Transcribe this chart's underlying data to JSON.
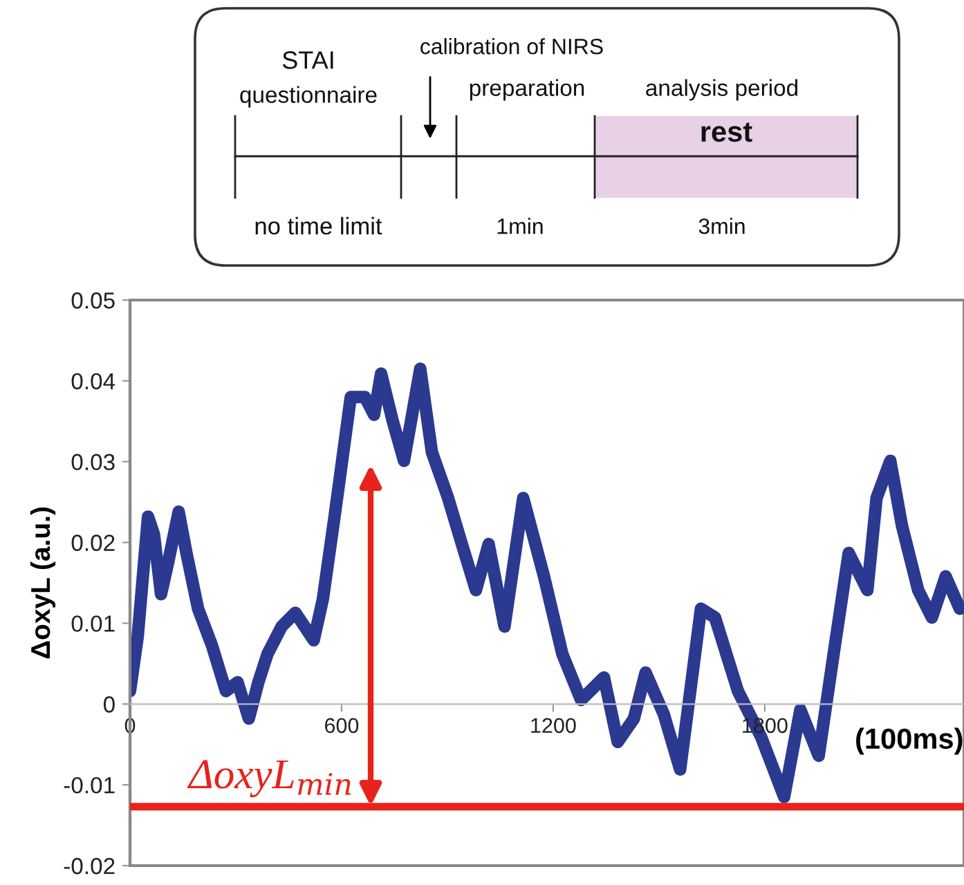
{
  "chart_data": {
    "type": "line",
    "ylabel": "ΔoxyL (a.u.)",
    "xlabel": "(100ms)",
    "x": [
      0,
      22,
      51,
      68,
      88,
      108,
      138,
      160,
      193,
      232,
      272,
      305,
      337,
      364,
      390,
      430,
      469,
      521,
      547,
      580,
      626,
      666,
      692,
      712,
      744,
      777,
      823,
      856,
      902,
      941,
      981,
      1017,
      1062,
      1115,
      1174,
      1226,
      1279,
      1344,
      1383,
      1429,
      1462,
      1514,
      1560,
      1619,
      1659,
      1724,
      1790,
      1855,
      1901,
      1953,
      1999,
      2038,
      2091,
      2117,
      2156,
      2189,
      2235,
      2274,
      2313,
      2353
    ],
    "series": [
      {
        "color": "#2b3990",
        "values": [
          0.0016,
          0.0084,
          0.0232,
          0.021,
          0.0136,
          0.0175,
          0.0238,
          0.0187,
          0.0118,
          0.0073,
          0.0016,
          0.0027,
          -0.0018,
          0.0027,
          0.0062,
          0.0096,
          0.0113,
          0.0079,
          0.013,
          0.0232,
          0.038,
          0.038,
          0.0358,
          0.0409,
          0.0352,
          0.0301,
          0.0415,
          0.0312,
          0.0255,
          0.0198,
          0.0141,
          0.0198,
          0.0096,
          0.0255,
          0.0158,
          0.0062,
          0.0005,
          0.0033,
          -0.0047,
          -0.0018,
          0.0039,
          -0.0013,
          -0.0081,
          0.0118,
          0.0107,
          0.0016,
          -0.0041,
          -0.0115,
          -0.0007,
          -0.0064,
          0.0073,
          0.0187,
          0.0141,
          0.0255,
          0.0301,
          0.0221,
          0.0141,
          0.0107,
          0.0158,
          0.0118
        ]
      }
    ],
    "xlim": [
      0,
      2365
    ],
    "ylim": [
      -0.02,
      0.05
    ],
    "xticks": [
      0,
      600,
      1200,
      1800
    ],
    "yticks": [
      -0.02,
      -0.01,
      0,
      0.01,
      0.02,
      0.03,
      0.04,
      0.05
    ],
    "ref_lines": [
      {
        "axis": "y",
        "value": -0.0127,
        "color": "#e8231b"
      }
    ],
    "annotations": [
      "ΔoxyL$_{min}$",
      "STAI",
      "questionnaire",
      "calibration of NIRS",
      "preparation",
      "analysis period",
      "rest",
      "no time limit",
      "1min",
      "3min"
    ],
    "grid": false,
    "legend": false,
    "marker": "none",
    "line_style": "solid"
  }
}
